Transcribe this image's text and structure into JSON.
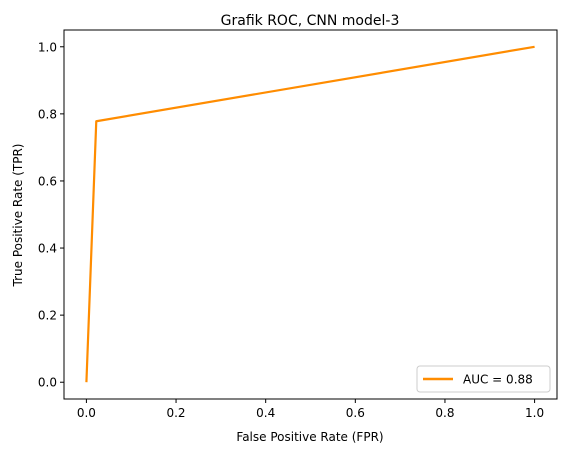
{
  "chart_data": {
    "type": "line",
    "title": "Grafik ROC, CNN model-3",
    "xlabel": "False Positive Rate (FPR)",
    "ylabel": "True Positive Rate (TPR)",
    "xlim": [
      -0.05,
      1.05
    ],
    "ylim": [
      -0.05,
      1.05
    ],
    "xticks": [
      0.0,
      0.2,
      0.4,
      0.6,
      0.8,
      1.0
    ],
    "xtick_labels": [
      "0.0",
      "0.2",
      "0.4",
      "0.6",
      "0.8",
      "1.0"
    ],
    "yticks": [
      0.0,
      0.2,
      0.4,
      0.6,
      0.8,
      1.0
    ],
    "ytick_labels": [
      "0.0",
      "0.2",
      "0.4",
      "0.6",
      "0.8",
      "1.0"
    ],
    "grid": false,
    "legend_position": "lower right",
    "series": [
      {
        "name": "AUC = 0.88",
        "color": "#ff8c00",
        "x": [
          0.0,
          0.022,
          1.0
        ],
        "y": [
          0.0,
          0.778,
          1.0
        ]
      }
    ]
  }
}
